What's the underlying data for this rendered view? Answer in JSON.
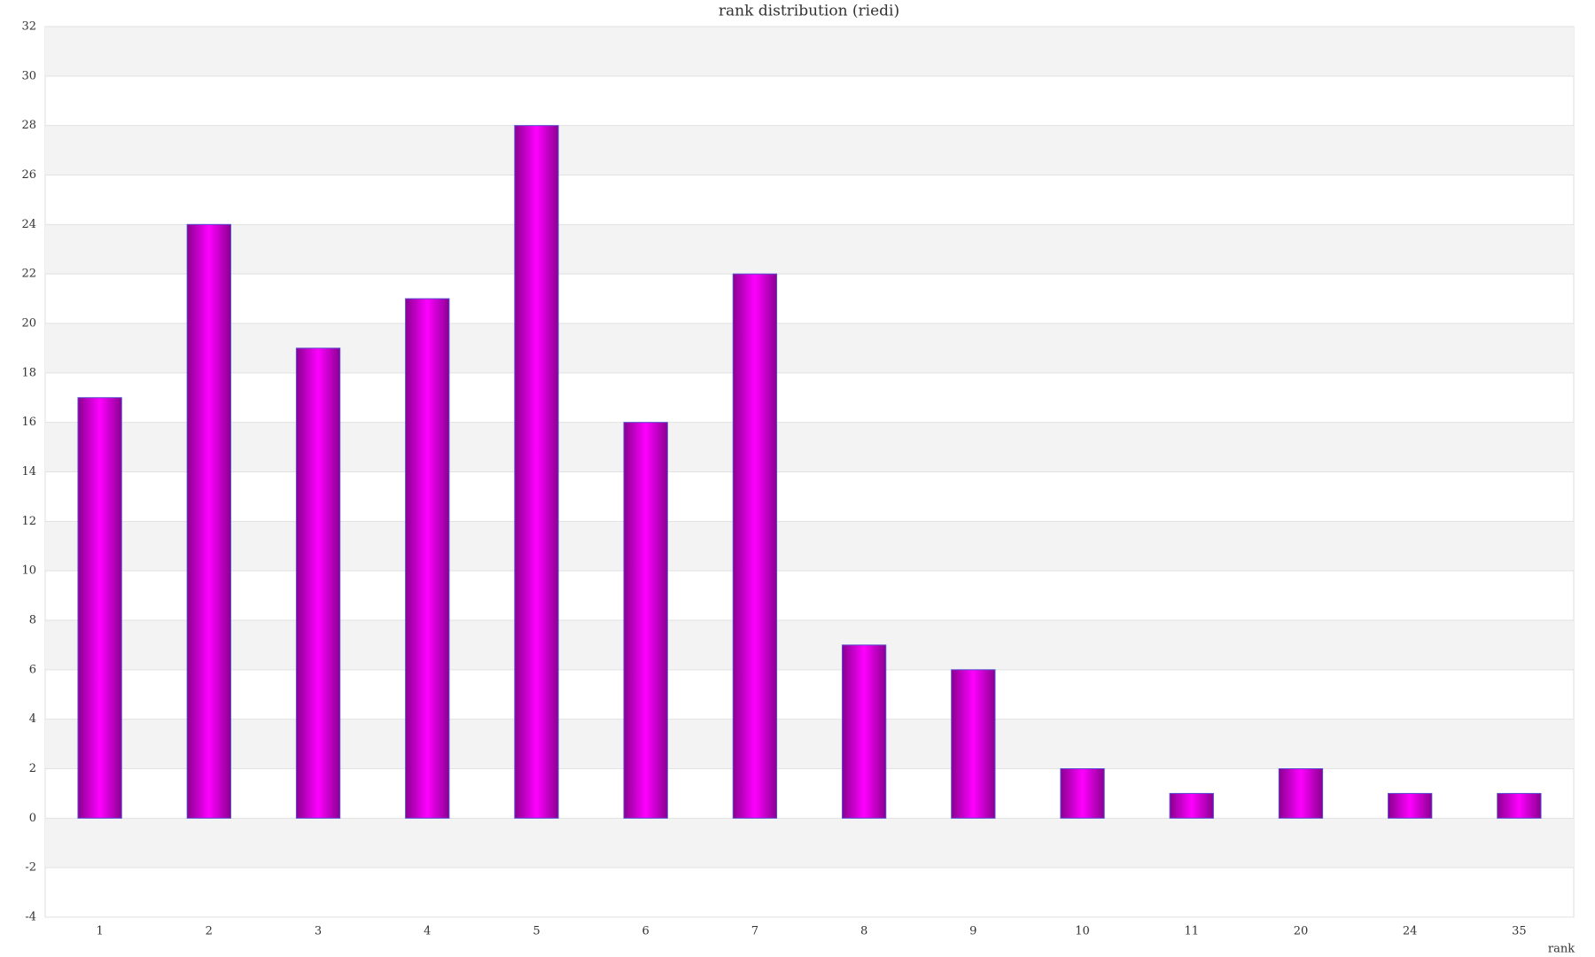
{
  "chart_data": {
    "type": "bar",
    "title": "rank distribution (riedi)",
    "x_label": "rank",
    "categories": [
      "1",
      "2",
      "3",
      "4",
      "5",
      "6",
      "7",
      "8",
      "9",
      "10",
      "11",
      "20",
      "24",
      "35"
    ],
    "values": [
      17,
      24,
      19,
      21,
      28,
      16,
      22,
      7,
      6,
      2,
      1,
      2,
      1,
      1
    ],
    "color": "#ff00ff",
    "ylim": [
      -4,
      32
    ],
    "yticks": [
      -4,
      -2,
      0,
      2,
      4,
      6,
      8,
      10,
      12,
      14,
      16,
      18,
      20,
      22,
      24,
      26,
      28,
      30,
      32
    ],
    "grid": true
  }
}
